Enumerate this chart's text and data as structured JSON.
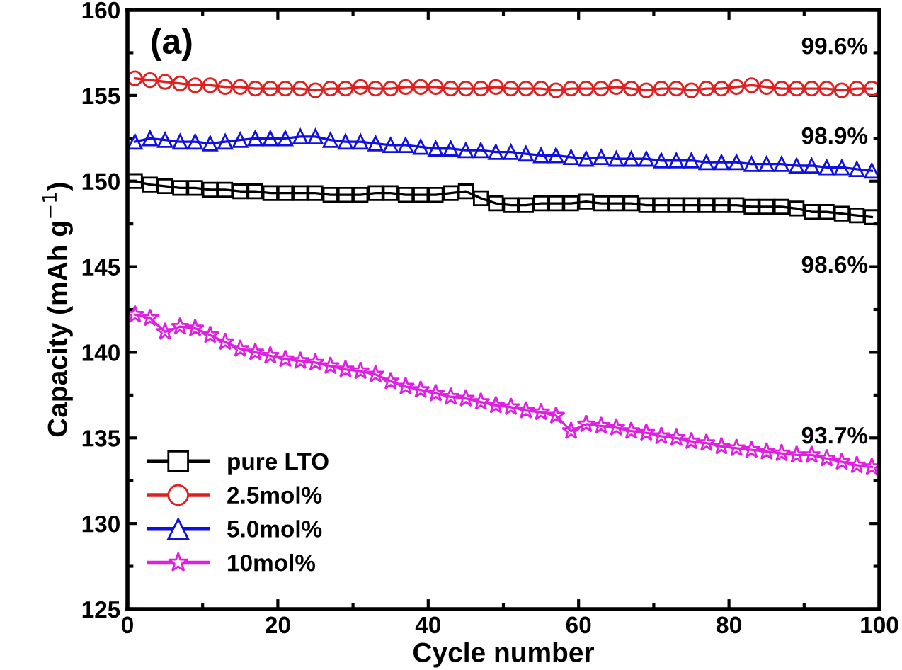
{
  "chart_data": {
    "type": "line",
    "xlabel": "Cycle number",
    "ylabel": "Capacity (mAh g$^{−1}$)",
    "x": [
      1,
      3,
      5,
      7,
      9,
      11,
      13,
      15,
      17,
      19,
      21,
      23,
      25,
      27,
      29,
      31,
      33,
      35,
      37,
      39,
      41,
      43,
      45,
      47,
      49,
      51,
      53,
      55,
      57,
      59,
      61,
      63,
      65,
      67,
      69,
      71,
      73,
      75,
      77,
      79,
      81,
      83,
      85,
      87,
      89,
      91,
      93,
      95,
      97,
      99
    ],
    "series": [
      {
        "name": "pure LTO",
        "color": "#000000",
        "marker": "square",
        "values": [
          150.0,
          149.8,
          149.7,
          149.6,
          149.6,
          149.5,
          149.5,
          149.4,
          149.4,
          149.3,
          149.3,
          149.3,
          149.3,
          149.2,
          149.2,
          149.2,
          149.3,
          149.3,
          149.2,
          149.2,
          149.2,
          149.3,
          149.4,
          149.0,
          148.7,
          148.6,
          148.6,
          148.7,
          148.7,
          148.7,
          148.8,
          148.7,
          148.7,
          148.7,
          148.6,
          148.6,
          148.6,
          148.6,
          148.6,
          148.6,
          148.6,
          148.5,
          148.5,
          148.5,
          148.4,
          148.2,
          148.2,
          148.1,
          148.0,
          147.9
        ]
      },
      {
        "name": "2.5mol%",
        "color": "#e02020",
        "marker": "circle",
        "values": [
          156.0,
          155.9,
          155.8,
          155.7,
          155.6,
          155.6,
          155.5,
          155.5,
          155.4,
          155.4,
          155.4,
          155.4,
          155.3,
          155.4,
          155.4,
          155.5,
          155.4,
          155.4,
          155.5,
          155.5,
          155.5,
          155.4,
          155.4,
          155.4,
          155.5,
          155.4,
          155.4,
          155.4,
          155.3,
          155.4,
          155.4,
          155.4,
          155.5,
          155.4,
          155.3,
          155.4,
          155.4,
          155.3,
          155.4,
          155.4,
          155.5,
          155.6,
          155.5,
          155.4,
          155.4,
          155.4,
          155.4,
          155.3,
          155.4,
          155.4
        ]
      },
      {
        "name": "5.0mol%",
        "color": "#1010e0",
        "marker": "triangle",
        "values": [
          152.3,
          152.5,
          152.4,
          152.3,
          152.3,
          152.2,
          152.3,
          152.4,
          152.5,
          152.5,
          152.5,
          152.6,
          152.6,
          152.4,
          152.3,
          152.3,
          152.2,
          152.1,
          152.1,
          152.0,
          151.9,
          151.9,
          151.8,
          151.8,
          151.7,
          151.7,
          151.6,
          151.5,
          151.5,
          151.4,
          151.3,
          151.4,
          151.3,
          151.3,
          151.3,
          151.2,
          151.2,
          151.2,
          151.1,
          151.1,
          151.1,
          151.0,
          151.0,
          151.0,
          150.9,
          150.9,
          150.8,
          150.8,
          150.7,
          150.6
        ]
      },
      {
        "name": "10mol%",
        "color": "#e020e0",
        "marker": "star",
        "values": [
          142.2,
          142.0,
          141.2,
          141.5,
          141.4,
          141.0,
          140.6,
          140.2,
          140.0,
          139.8,
          139.6,
          139.5,
          139.4,
          139.2,
          139.0,
          138.9,
          138.7,
          138.3,
          138.0,
          137.8,
          137.6,
          137.4,
          137.3,
          137.1,
          136.9,
          136.8,
          136.6,
          136.5,
          136.3,
          135.4,
          135.8,
          135.7,
          135.6,
          135.4,
          135.3,
          135.1,
          135.0,
          134.8,
          134.7,
          134.5,
          134.4,
          134.3,
          134.2,
          134.1,
          134.0,
          134.0,
          133.8,
          133.6,
          133.4,
          133.3
        ]
      }
    ],
    "xlim": [
      0,
      100
    ],
    "xticks": [
      0,
      20,
      40,
      60,
      80,
      100
    ],
    "ylim": [
      125,
      160
    ],
    "yticks": [
      125,
      130,
      135,
      140,
      145,
      150,
      155,
      160
    ],
    "grid": false,
    "legend": "bottom left",
    "annotations": [
      "(a)",
      "99.6%",
      "98.9%",
      "98.6%",
      "93.7%"
    ]
  }
}
